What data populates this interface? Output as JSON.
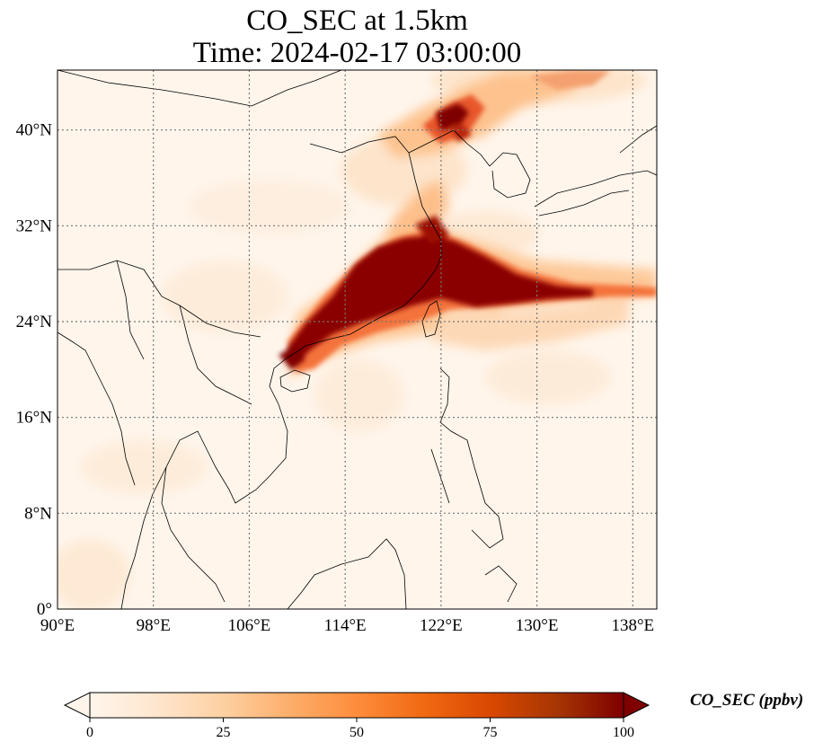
{
  "title": {
    "line1": "CO_SEC at 1.5km",
    "line2": "Time: 2024-02-17 03:00:00"
  },
  "map": {
    "lon_range": [
      90,
      140
    ],
    "lat_range": [
      0,
      45
    ],
    "lon_ticks": [
      "90°E",
      "98°E",
      "106°E",
      "114°E",
      "122°E",
      "130°E",
      "138°E"
    ],
    "lon_tick_values": [
      90,
      98,
      106,
      114,
      122,
      130,
      138
    ],
    "lat_ticks": [
      "0°",
      "8°N",
      "16°N",
      "24°N",
      "32°N",
      "40°N"
    ],
    "lat_tick_values": [
      0,
      8,
      16,
      24,
      32,
      40
    ],
    "gridlines": "dotted",
    "variable": "CO_SEC",
    "level": "1.5km",
    "plumes": [
      {
        "lon": 125.0,
        "lat": 28.0,
        "value": 100
      },
      {
        "lon": 129.0,
        "lat": 27.3,
        "value": 100
      },
      {
        "lon": 133.0,
        "lat": 26.8,
        "value": 70
      },
      {
        "lon": 137.0,
        "lat": 27.0,
        "value": 35
      },
      {
        "lon": 117.5,
        "lat": 28.0,
        "value": 90
      },
      {
        "lon": 114.5,
        "lat": 26.0,
        "value": 75
      },
      {
        "lon": 110.8,
        "lat": 22.0,
        "value": 80
      },
      {
        "lon": 109.5,
        "lat": 20.5,
        "value": 90
      },
      {
        "lon": 120.2,
        "lat": 31.5,
        "value": 90
      },
      {
        "lon": 118.8,
        "lat": 40.6,
        "value": 85
      },
      {
        "lon": 116.5,
        "lat": 39.5,
        "value": 40
      },
      {
        "lon": 125.5,
        "lat": 44.5,
        "value": 35
      },
      {
        "lon": 117.0,
        "lat": 35.0,
        "value": 25
      },
      {
        "lon": 127.0,
        "lat": 24.5,
        "value": 20
      }
    ]
  },
  "colorbar": {
    "title": "CO_SEC (ppbv)",
    "ticks": [
      "0",
      "25",
      "50",
      "75",
      "100"
    ],
    "tick_values": [
      0,
      25,
      50,
      75,
      100
    ],
    "range": [
      0,
      100
    ],
    "extend": "both",
    "colors": [
      "#fff5eb",
      "#fee6ce",
      "#fdd0a2",
      "#fdae6b",
      "#fd8d3c",
      "#f16913",
      "#d94801",
      "#a63603",
      "#7f0000"
    ]
  }
}
